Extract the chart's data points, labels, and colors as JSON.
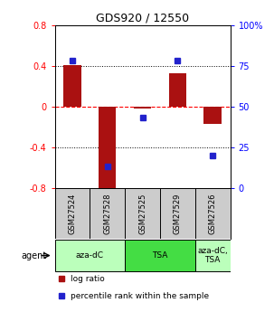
{
  "title": "GDS920 / 12550",
  "samples": [
    "GSM27524",
    "GSM27528",
    "GSM27525",
    "GSM27529",
    "GSM27526"
  ],
  "log_ratio": [
    0.41,
    -0.87,
    -0.02,
    0.33,
    -0.17
  ],
  "percentile": [
    78,
    13,
    43,
    78,
    20
  ],
  "ylim_left": [
    -0.8,
    0.8
  ],
  "ylim_right": [
    0,
    100
  ],
  "yticks_left": [
    -0.8,
    -0.4,
    0.0,
    0.4,
    0.8
  ],
  "yticks_right": [
    0,
    25,
    50,
    75,
    100
  ],
  "ytick_labels_left": [
    "-0.8",
    "-0.4",
    "0",
    "0.4",
    "0.8"
  ],
  "ytick_labels_right": [
    "0",
    "25",
    "50",
    "75",
    "100%"
  ],
  "hlines_dotted": [
    -0.4,
    0.4
  ],
  "hline_dashed": 0.0,
  "bar_color": "#AA1111",
  "dot_color": "#2222CC",
  "bar_width": 0.5,
  "agents": [
    {
      "label": "aza-dC",
      "span": [
        0,
        2
      ],
      "color": "#BBFFBB"
    },
    {
      "label": "TSA",
      "span": [
        2,
        4
      ],
      "color": "#44DD44"
    },
    {
      "label": "aza-dC,\nTSA",
      "span": [
        4,
        5
      ],
      "color": "#BBFFBB"
    }
  ],
  "agent_label": "agent",
  "legend_items": [
    {
      "color": "#AA1111",
      "label": "log ratio"
    },
    {
      "color": "#2222CC",
      "label": "percentile rank within the sample"
    }
  ],
  "background_color": "#FFFFFF",
  "plot_bg": "#FFFFFF",
  "sample_bg": "#CCCCCC"
}
